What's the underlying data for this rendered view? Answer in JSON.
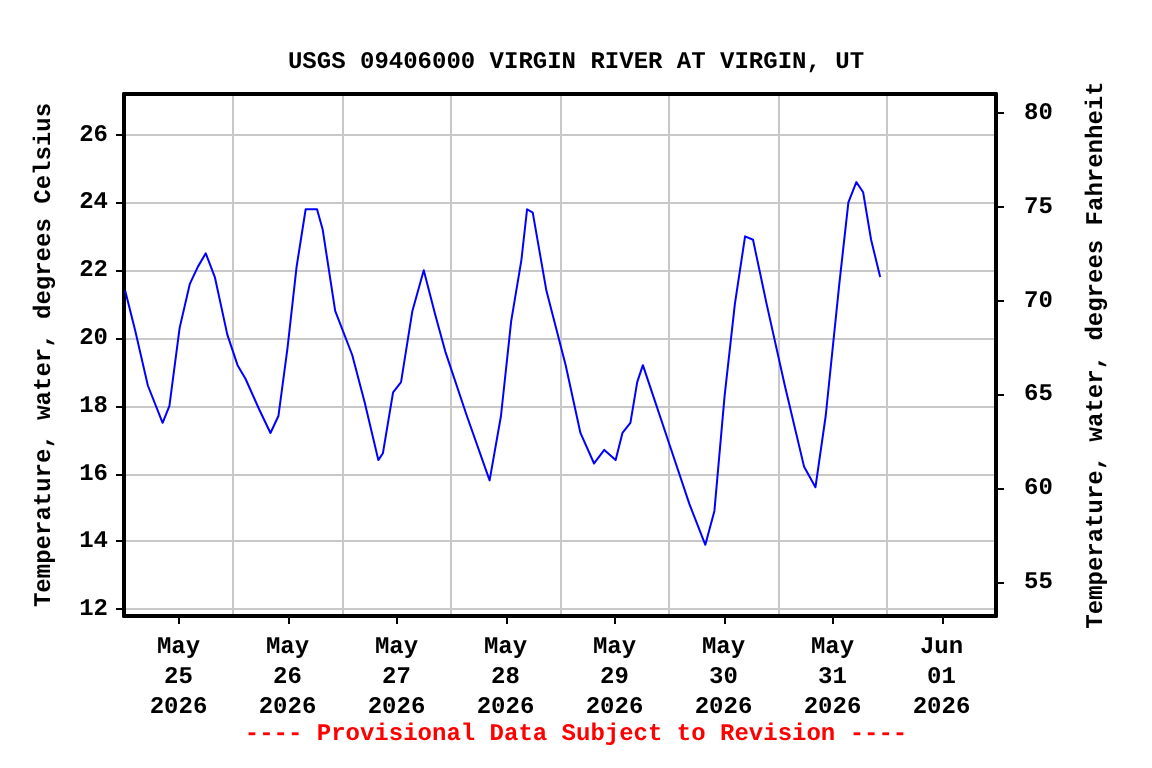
{
  "chart_data": {
    "type": "line",
    "title": "USGS 09406000 VIRGIN RIVER AT VIRGIN, UT",
    "ylabel": "Temperature, water, degrees Celsius",
    "y2label": "Temperature, water, degrees Fahrenheit",
    "annotations": [
      "---- Provisional Data Subject to Revision ----"
    ],
    "xlim": [
      "2026-05-25",
      "2026-06-02"
    ],
    "xticks": [
      {
        "value": "2026-05-25",
        "label": null
      },
      {
        "value": "2026-05-25T12:00",
        "label": "May\n25\n2026"
      },
      {
        "value": "2026-05-26",
        "label": null
      },
      {
        "value": "2026-05-26T12:00",
        "label": "May\n26\n2026"
      },
      {
        "value": "2026-05-27",
        "label": null
      },
      {
        "value": "2026-05-27T12:00",
        "label": "May\n27\n2026"
      },
      {
        "value": "2026-05-28",
        "label": null
      },
      {
        "value": "2026-05-28T12:00",
        "label": "May\n28\n2026"
      },
      {
        "value": "2026-05-29",
        "label": null
      },
      {
        "value": "2026-05-29T12:00",
        "label": "May\n29\n2026"
      },
      {
        "value": "2026-05-30",
        "label": null
      },
      {
        "value": "2026-05-30T12:00",
        "label": "May\n30\n2026"
      },
      {
        "value": "2026-05-31",
        "label": null
      },
      {
        "value": "2026-05-31T12:00",
        "label": "May\n31\n2026"
      },
      {
        "value": "2026-06-01",
        "label": null
      },
      {
        "value": "2026-06-01T12:00",
        "label": "Jun\n01\n2026"
      },
      {
        "value": "2026-06-02",
        "label": null
      }
    ],
    "ylim": [
      11.8,
      27.2
    ],
    "yticks": [
      12,
      14,
      16,
      18,
      20,
      22,
      24,
      26
    ],
    "y2lim": [
      53.2,
      81.0
    ],
    "y2ticks": [
      55,
      60,
      65,
      70,
      75,
      80
    ],
    "grid": true,
    "x": [
      "2026-05-25T00:15",
      "2026-05-25T02:30",
      "2026-05-25T05:15",
      "2026-05-25T08:30",
      "2026-05-25T10:00",
      "2026-05-25T12:15",
      "2026-05-25T14:30",
      "2026-05-25T16:15",
      "2026-05-25T18:00",
      "2026-05-25T20:00",
      "2026-05-25T22:45",
      "2026-05-26T01:00",
      "2026-05-26T02:45",
      "2026-05-26T05:45",
      "2026-05-26T08:15",
      "2026-05-26T10:00",
      "2026-05-26T12:00",
      "2026-05-26T14:00",
      "2026-05-26T16:00",
      "2026-05-26T18:30",
      "2026-05-26T19:45",
      "2026-05-26T22:30",
      "2026-05-27T02:15",
      "2026-05-27T05:00",
      "2026-05-27T08:00",
      "2026-05-27T09:00",
      "2026-05-27T11:15",
      "2026-05-27T13:00",
      "2026-05-27T15:30",
      "2026-05-27T18:00",
      "2026-05-27T20:30",
      "2026-05-27T22:45",
      "2026-05-28T03:30",
      "2026-05-28T08:30",
      "2026-05-28T11:00",
      "2026-05-28T13:15",
      "2026-05-28T15:30",
      "2026-05-28T16:45",
      "2026-05-28T18:00",
      "2026-05-28T21:00",
      "2026-05-29T01:15",
      "2026-05-29T04:30",
      "2026-05-29T07:30",
      "2026-05-29T09:45",
      "2026-05-29T12:15",
      "2026-05-29T13:45",
      "2026-05-29T15:30",
      "2026-05-29T17:00",
      "2026-05-29T18:15",
      "2026-05-29T20:30",
      "2026-05-30T00:15",
      "2026-05-30T04:30",
      "2026-05-30T08:00",
      "2026-05-30T10:00",
      "2026-05-30T12:15",
      "2026-05-30T14:30",
      "2026-05-30T16:45",
      "2026-05-30T18:30",
      "2026-05-30T21:30",
      "2026-05-31T01:30",
      "2026-05-31T05:45",
      "2026-05-31T08:15",
      "2026-05-31T10:30",
      "2026-05-31T13:30",
      "2026-05-31T15:30",
      "2026-05-31T17:15",
      "2026-05-31T18:45",
      "2026-05-31T20:30",
      "2026-05-31T22:30"
    ],
    "series": [
      {
        "color": "#0000ff",
        "values": [
          21.4,
          20.2,
          18.6,
          17.5,
          18.0,
          20.3,
          21.6,
          22.1,
          22.5,
          21.8,
          20.1,
          19.2,
          18.8,
          17.9,
          17.2,
          17.7,
          19.7,
          22.1,
          23.8,
          23.8,
          23.2,
          20.8,
          19.5,
          18.1,
          16.4,
          16.6,
          18.4,
          18.7,
          20.8,
          22.0,
          20.7,
          19.6,
          17.7,
          15.8,
          17.7,
          20.5,
          22.3,
          23.8,
          23.7,
          21.4,
          19.2,
          17.2,
          16.3,
          16.7,
          16.4,
          17.2,
          17.5,
          18.7,
          19.2,
          18.3,
          16.8,
          15.1,
          13.9,
          14.9,
          18.3,
          21.0,
          23.0,
          22.9,
          21.0,
          18.6,
          16.2,
          15.6,
          17.7,
          21.6,
          24.0,
          24.6,
          24.3,
          22.9,
          21.8
        ]
      }
    ]
  }
}
